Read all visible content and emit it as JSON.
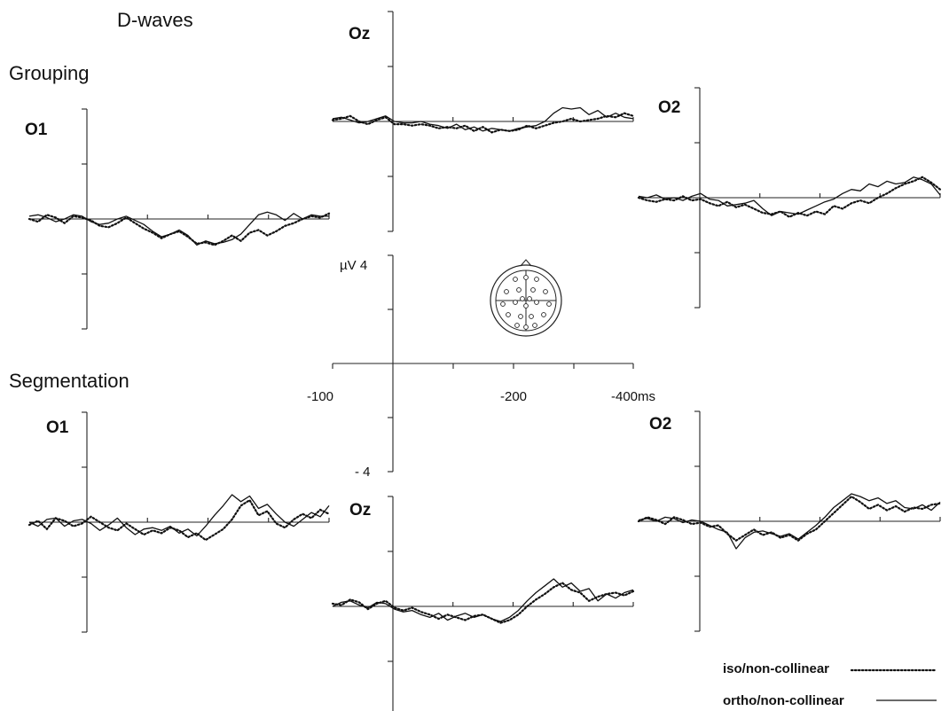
{
  "figure": {
    "title": "D-waves",
    "section_top": "Grouping",
    "section_bottom": "Segmentation"
  },
  "scale_axis": {
    "unit_label": "µV 4",
    "min_label": "- 4",
    "tick_labels": [
      "-100",
      "-200",
      "-400",
      "ms"
    ]
  },
  "legend": {
    "iso": "iso/non-collinear",
    "ortho": "ortho/non-collinear"
  },
  "colors": {
    "trace": "#111111",
    "axis": "#222222"
  },
  "chart_data": [
    {
      "type": "line",
      "panel": "Grouping",
      "title": "O1",
      "x_unit": "ms",
      "y_unit": "µV",
      "ylim": [
        -4,
        4
      ],
      "series": [
        {
          "name": "ortho/non-collinear",
          "style": "solid",
          "values": [
            0.2,
            0.3,
            0.1,
            -0.2,
            0.0,
            0.3,
            0.2,
            -0.2,
            -0.4,
            -0.3,
            0.0,
            0.2,
            -0.1,
            -0.4,
            -0.9,
            -1.3,
            -1.1,
            -0.8,
            -1.2,
            -1.9,
            -1.6,
            -1.8,
            -1.7,
            -1.5,
            -1.1,
            -0.4,
            0.3,
            0.5,
            0.3,
            -0.1,
            0.4,
            0.0,
            0.3,
            0.2,
            0.2
          ]
        },
        {
          "name": "iso/non-collinear",
          "style": "dotted",
          "values": [
            0.0,
            -0.2,
            0.3,
            0.1,
            -0.3,
            0.2,
            0.1,
            -0.1,
            -0.5,
            -0.6,
            -0.3,
            0.1,
            -0.3,
            -0.7,
            -1.0,
            -1.4,
            -1.1,
            -0.9,
            -1.3,
            -1.8,
            -1.7,
            -1.9,
            -1.6,
            -1.2,
            -1.6,
            -1.0,
            -0.8,
            -1.2,
            -0.9,
            -0.5,
            -0.3,
            0.0,
            0.2,
            0.1,
            0.4
          ]
        }
      ]
    },
    {
      "type": "line",
      "panel": "Grouping",
      "title": "Oz",
      "x_unit": "ms",
      "y_unit": "µV",
      "ylim": [
        -4,
        4
      ],
      "series": [
        {
          "name": "ortho/non-collinear",
          "style": "solid",
          "values": [
            0.2,
            0.3,
            0.1,
            -0.1,
            0.0,
            0.2,
            0.4,
            0.0,
            -0.1,
            -0.1,
            0.0,
            -0.2,
            -0.3,
            -0.5,
            -0.2,
            -0.6,
            -0.4,
            -0.7,
            -0.5,
            -0.6,
            -0.7,
            -0.5,
            -0.4,
            -0.3,
            0.0,
            0.6,
            1.0,
            0.9,
            1.0,
            0.5,
            0.8,
            0.3,
            0.6,
            0.3,
            0.2
          ]
        },
        {
          "name": "iso/non-collinear",
          "style": "dotted",
          "values": [
            0.1,
            0.2,
            0.4,
            0.0,
            -0.2,
            0.1,
            0.3,
            -0.2,
            -0.2,
            -0.3,
            -0.2,
            -0.3,
            -0.5,
            -0.4,
            -0.5,
            -0.3,
            -0.7,
            -0.4,
            -0.8,
            -0.6,
            -0.7,
            -0.6,
            -0.3,
            -0.5,
            -0.3,
            -0.1,
            0.0,
            0.2,
            0.0,
            0.1,
            0.2,
            0.4,
            0.3,
            0.6,
            0.4
          ]
        }
      ]
    },
    {
      "type": "line",
      "panel": "Grouping",
      "title": "O2",
      "x_unit": "ms",
      "y_unit": "µV",
      "ylim": [
        -4,
        4
      ],
      "series": [
        {
          "name": "ortho/non-collinear",
          "style": "solid",
          "values": [
            0.1,
            0.0,
            0.2,
            -0.1,
            0.0,
            -0.2,
            0.1,
            0.3,
            -0.1,
            -0.2,
            -0.6,
            -0.5,
            -0.4,
            -0.2,
            -0.8,
            -1.3,
            -1.0,
            -1.1,
            -1.2,
            -0.9,
            -0.6,
            -0.3,
            -0.1,
            0.3,
            0.6,
            0.5,
            1.0,
            0.8,
            1.2,
            1.0,
            1.1,
            1.5,
            1.3,
            1.0,
            0.2
          ]
        },
        {
          "name": "iso/non-collinear",
          "style": "dotted",
          "values": [
            0.0,
            -0.2,
            -0.3,
            -0.1,
            -0.2,
            0.1,
            -0.2,
            -0.1,
            -0.4,
            -0.6,
            -0.3,
            -0.7,
            -0.5,
            -0.8,
            -1.1,
            -1.2,
            -1.0,
            -1.4,
            -1.1,
            -1.3,
            -1.0,
            -1.2,
            -0.6,
            -0.8,
            -0.4,
            -0.2,
            -0.4,
            0.0,
            0.3,
            0.7,
            1.0,
            1.2,
            1.5,
            1.1,
            0.6
          ]
        }
      ]
    },
    {
      "type": "line",
      "panel": "Segmentation",
      "title": "O1",
      "x_unit": "ms",
      "y_unit": "µV",
      "ylim": [
        -4,
        4
      ],
      "series": [
        {
          "name": "ortho/non-collinear",
          "style": "solid",
          "values": [
            0.0,
            -0.3,
            0.2,
            0.3,
            -0.3,
            0.1,
            0.2,
            -0.1,
            -0.6,
            -0.2,
            0.3,
            -0.4,
            -0.9,
            -0.5,
            -0.4,
            -0.6,
            -0.3,
            -0.8,
            -0.5,
            -1.0,
            -0.3,
            0.5,
            1.2,
            2.0,
            1.5,
            1.9,
            1.0,
            1.3,
            0.6,
            0.0,
            -0.3,
            0.2,
            0.7,
            0.4,
            1.2
          ]
        },
        {
          "name": "iso/non-collinear",
          "style": "dotted",
          "values": [
            -0.2,
            0.1,
            -0.5,
            0.3,
            0.1,
            -0.3,
            -0.1,
            0.4,
            0.0,
            -0.4,
            -0.6,
            -0.1,
            -0.5,
            -0.9,
            -0.6,
            -0.8,
            -0.4,
            -0.6,
            -1.1,
            -0.8,
            -1.3,
            -0.9,
            -0.5,
            0.2,
            1.2,
            1.6,
            0.5,
            0.8,
            -0.1,
            -0.4,
            0.2,
            0.6,
            0.3,
            0.9,
            0.6
          ]
        }
      ]
    },
    {
      "type": "line",
      "panel": "Segmentation",
      "title": "Oz",
      "x_unit": "ms",
      "y_unit": "µV",
      "ylim": [
        -4,
        4
      ],
      "series": [
        {
          "name": "ortho/non-collinear",
          "style": "solid",
          "values": [
            0.0,
            0.3,
            0.4,
            0.1,
            -0.1,
            0.3,
            0.2,
            -0.2,
            -0.4,
            -0.3,
            -0.6,
            -0.8,
            -0.5,
            -1.0,
            -0.7,
            -0.5,
            -0.8,
            -0.6,
            -0.9,
            -1.1,
            -0.8,
            -0.3,
            0.4,
            1.0,
            1.5,
            2.0,
            1.4,
            1.7,
            1.1,
            1.3,
            0.4,
            0.9,
            0.6,
            1.0,
            1.2
          ]
        },
        {
          "name": "iso/non-collinear",
          "style": "dotted",
          "values": [
            0.2,
            0.1,
            0.5,
            0.3,
            -0.2,
            0.2,
            0.4,
            -0.1,
            -0.3,
            -0.1,
            -0.4,
            -0.6,
            -0.9,
            -0.6,
            -0.8,
            -1.0,
            -0.7,
            -0.6,
            -0.9,
            -1.2,
            -1.0,
            -0.6,
            0.0,
            0.5,
            0.9,
            1.4,
            1.7,
            1.2,
            1.0,
            0.4,
            0.7,
            0.9,
            1.0,
            0.8,
            1.1
          ]
        }
      ]
    },
    {
      "type": "line",
      "panel": "Segmentation",
      "title": "O2",
      "x_unit": "ms",
      "y_unit": "µV",
      "ylim": [
        -4,
        4
      ],
      "series": [
        {
          "name": "ortho/non-collinear",
          "style": "solid",
          "values": [
            0.1,
            0.2,
            0.0,
            0.3,
            0.2,
            -0.1,
            0.1,
            0.0,
            -0.3,
            -0.6,
            -0.8,
            -2.0,
            -1.2,
            -0.8,
            -0.7,
            -0.9,
            -1.1,
            -0.9,
            -1.3,
            -0.8,
            -0.3,
            0.3,
            1.0,
            1.5,
            2.0,
            1.8,
            1.5,
            1.7,
            1.3,
            1.5,
            1.0,
            0.9,
            1.2,
            0.8,
            1.4
          ]
        },
        {
          "name": "iso/non-collinear",
          "style": "dotted",
          "values": [
            0.0,
            0.3,
            0.1,
            -0.2,
            0.3,
            0.1,
            -0.2,
            -0.1,
            -0.4,
            -0.3,
            -0.9,
            -1.4,
            -1.0,
            -0.6,
            -1.0,
            -0.8,
            -1.2,
            -1.0,
            -1.4,
            -0.9,
            -0.6,
            0.0,
            0.6,
            1.2,
            1.8,
            1.4,
            0.9,
            1.2,
            0.8,
            1.1,
            0.7,
            1.0,
            0.9,
            1.2,
            1.3
          ]
        }
      ]
    }
  ]
}
